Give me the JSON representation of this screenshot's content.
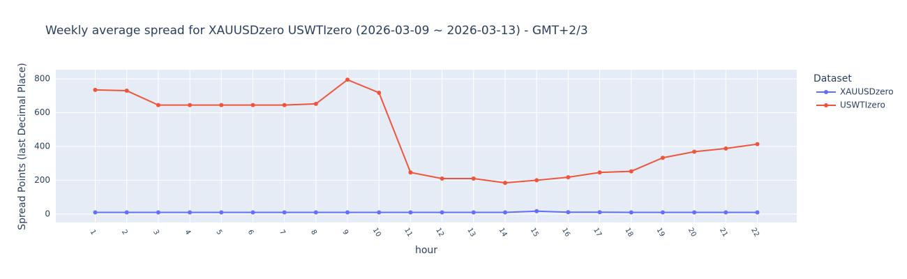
{
  "chart_data": {
    "type": "line",
    "title": "Weekly average spread for  XAUUSDzero USWTIzero (2026-03-09 ~ 2026-03-13) - GMT+2/3",
    "x_label": "hour",
    "y_label": "Spread Points (last Decimal Place)",
    "legend_title": "Dataset",
    "x": [
      1,
      2,
      3,
      4,
      5,
      6,
      7,
      8,
      9,
      10,
      11,
      12,
      13,
      14,
      15,
      16,
      17,
      18,
      19,
      20,
      21,
      22
    ],
    "series": [
      {
        "name": "XAUUSDzero",
        "color": "#636efa",
        "values": [
          10,
          10,
          10,
          10,
          10,
          10,
          10,
          10,
          10,
          10,
          10,
          10,
          10,
          10,
          17,
          11,
          11,
          10,
          10,
          10,
          10,
          10
        ]
      },
      {
        "name": "USWTIzero",
        "color": "#ef553b",
        "values": [
          735,
          730,
          645,
          645,
          645,
          645,
          645,
          652,
          795,
          718,
          246,
          210,
          210,
          185,
          200,
          218,
          246,
          253,
          333,
          369,
          388,
          414
        ]
      }
    ],
    "xlim": [
      -0.25,
      23.25
    ],
    "xticks": [
      1,
      2,
      3,
      4,
      5,
      6,
      7,
      8,
      9,
      10,
      11,
      12,
      13,
      14,
      15,
      16,
      17,
      18,
      19,
      20,
      21,
      22
    ],
    "ylim": [
      -50,
      854
    ],
    "yticks": [
      0,
      200,
      400,
      600,
      800
    ],
    "grid": true
  }
}
